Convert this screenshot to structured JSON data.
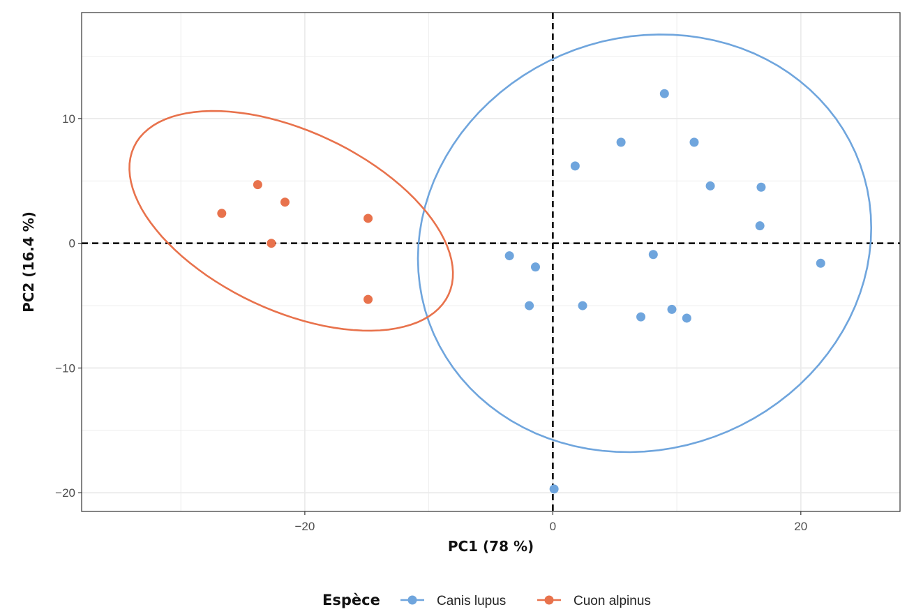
{
  "chart_data": {
    "type": "scatter",
    "xlabel": "PC1 (78 %)",
    "ylabel": "PC2 (16.4 %)",
    "xlim": [
      -38,
      28
    ],
    "ylim": [
      -21.5,
      18.5
    ],
    "x_ticks": [
      -20,
      0,
      20
    ],
    "x_tick_labels": [
      "−20",
      "0",
      "20"
    ],
    "y_ticks": [
      -20,
      -10,
      0,
      10
    ],
    "y_tick_labels": [
      "−20",
      "−10",
      "0",
      "10"
    ],
    "grid": true,
    "reference_lines": {
      "x": 0,
      "y": 0,
      "style": "dashed"
    },
    "legend": {
      "title": "Espèce",
      "position": "bottom"
    },
    "series": [
      {
        "name": "Canis lupus",
        "color": "#6fa5dd",
        "points": [
          [
            9.0,
            12.0
          ],
          [
            5.5,
            8.1
          ],
          [
            11.4,
            8.1
          ],
          [
            1.8,
            6.2
          ],
          [
            12.7,
            4.6
          ],
          [
            16.8,
            4.5
          ],
          [
            16.7,
            1.4
          ],
          [
            21.6,
            -1.6
          ],
          [
            8.1,
            -0.9
          ],
          [
            -3.5,
            -1.0
          ],
          [
            -1.4,
            -1.9
          ],
          [
            -1.9,
            -5.0
          ],
          [
            2.4,
            -5.0
          ],
          [
            7.1,
            -5.9
          ],
          [
            9.6,
            -5.3
          ],
          [
            10.8,
            -6.0
          ],
          [
            0.1,
            -19.7
          ]
        ],
        "ellipse": {
          "center": [
            7.4,
            0.0
          ],
          "semi_axes": [
            18.5,
            16.5
          ],
          "angle_deg": 20
        }
      },
      {
        "name": "Cuon alpinus",
        "color": "#e8724c",
        "points": [
          [
            -23.8,
            4.7
          ],
          [
            -21.6,
            3.3
          ],
          [
            -26.7,
            2.4
          ],
          [
            -14.9,
            2.0
          ],
          [
            -22.7,
            0.0
          ],
          [
            -14.9,
            -4.5
          ]
        ],
        "ellipse": {
          "center": [
            -21.1,
            1.8
          ],
          "semi_axes": [
            14.0,
            7.2
          ],
          "angle_deg": -25
        }
      }
    ]
  }
}
